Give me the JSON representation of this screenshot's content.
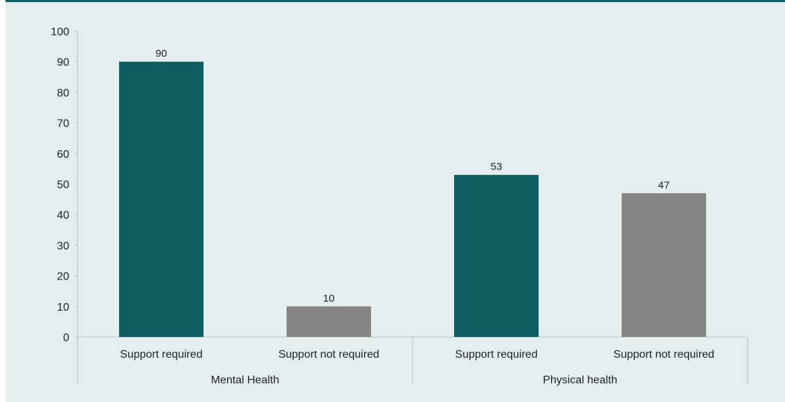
{
  "chart_data": {
    "type": "bar",
    "groups": [
      {
        "label": "Mental Health",
        "categories": [
          "Support required",
          "Support not required"
        ],
        "values": [
          90,
          10
        ]
      },
      {
        "label": "Physical health",
        "categories": [
          "Support required",
          "Support not required"
        ],
        "values": [
          53,
          47
        ]
      }
    ],
    "yticks": [
      "0",
      "10",
      "20",
      "30",
      "40",
      "50",
      "60",
      "70",
      "80",
      "90",
      "100"
    ],
    "ylim": [
      0,
      100
    ],
    "grid": false,
    "legend": "none",
    "colors": {
      "support_required": "#0c5e61",
      "support_not_required": "#858585",
      "background": "#e4eeee",
      "axis": "#b9c1c1"
    }
  }
}
